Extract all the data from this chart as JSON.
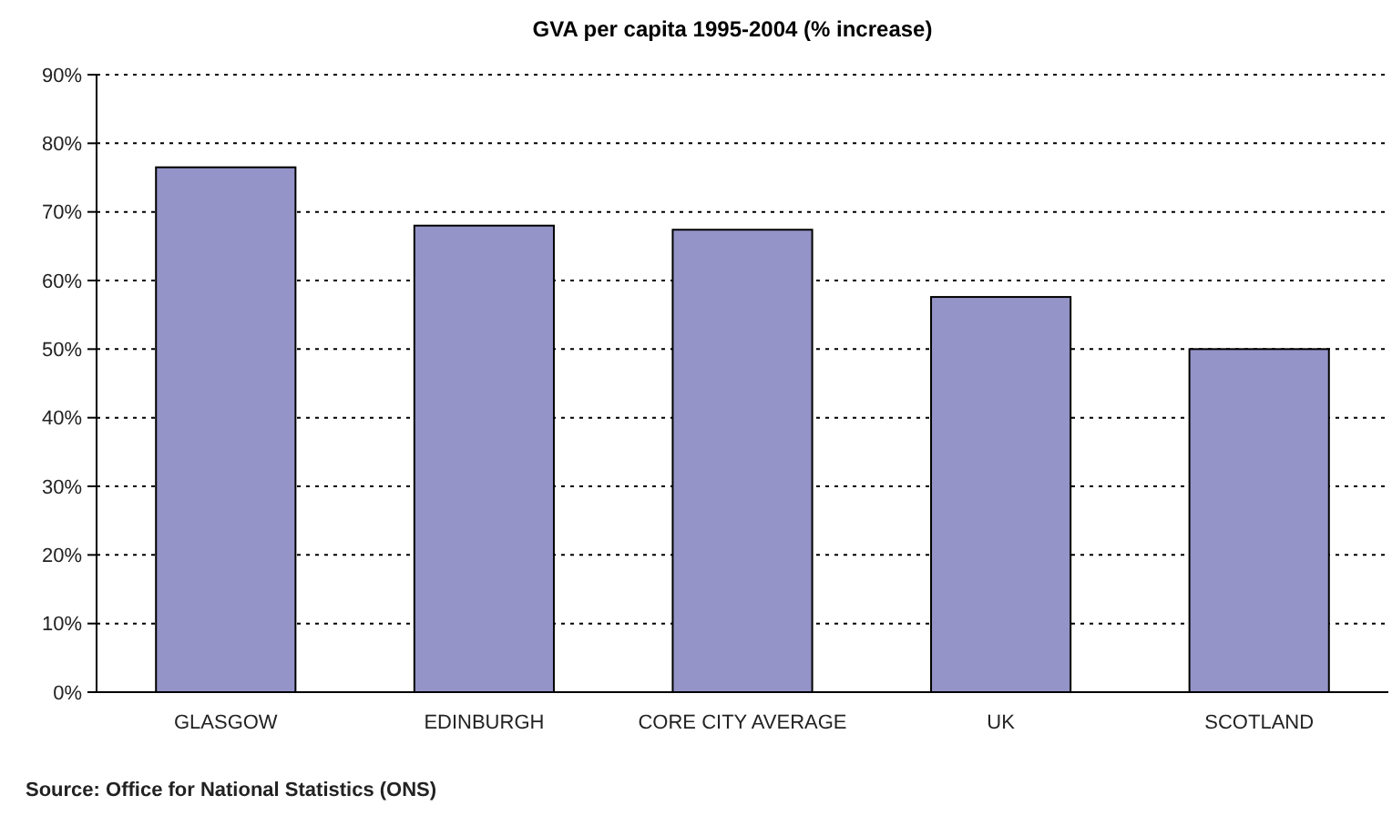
{
  "chart_data": {
    "type": "bar",
    "title": "GVA per capita 1995-2004 (% increase)",
    "categories": [
      "GLASGOW",
      "EDINBURGH",
      "CORE CITY AVERAGE",
      "UK",
      "SCOTLAND"
    ],
    "values": [
      76.5,
      68,
      67.4,
      57.6,
      50
    ],
    "color": "#9494c8",
    "ylim": [
      0,
      90
    ],
    "yticks": [
      {
        "value": 0,
        "label": "0%"
      },
      {
        "value": 10,
        "label": "10%"
      },
      {
        "value": 20,
        "label": "20%"
      },
      {
        "value": 30,
        "label": "30%"
      },
      {
        "value": 40,
        "label": "40%"
      },
      {
        "value": 50,
        "label": "50%"
      },
      {
        "value": 60,
        "label": "60%"
      },
      {
        "value": 70,
        "label": "70%"
      },
      {
        "value": 80,
        "label": "80%"
      },
      {
        "value": 90,
        "label": "90%"
      }
    ],
    "grid": "y",
    "annotations": [
      "Source: Office for National Statistics (ONS)"
    ]
  }
}
